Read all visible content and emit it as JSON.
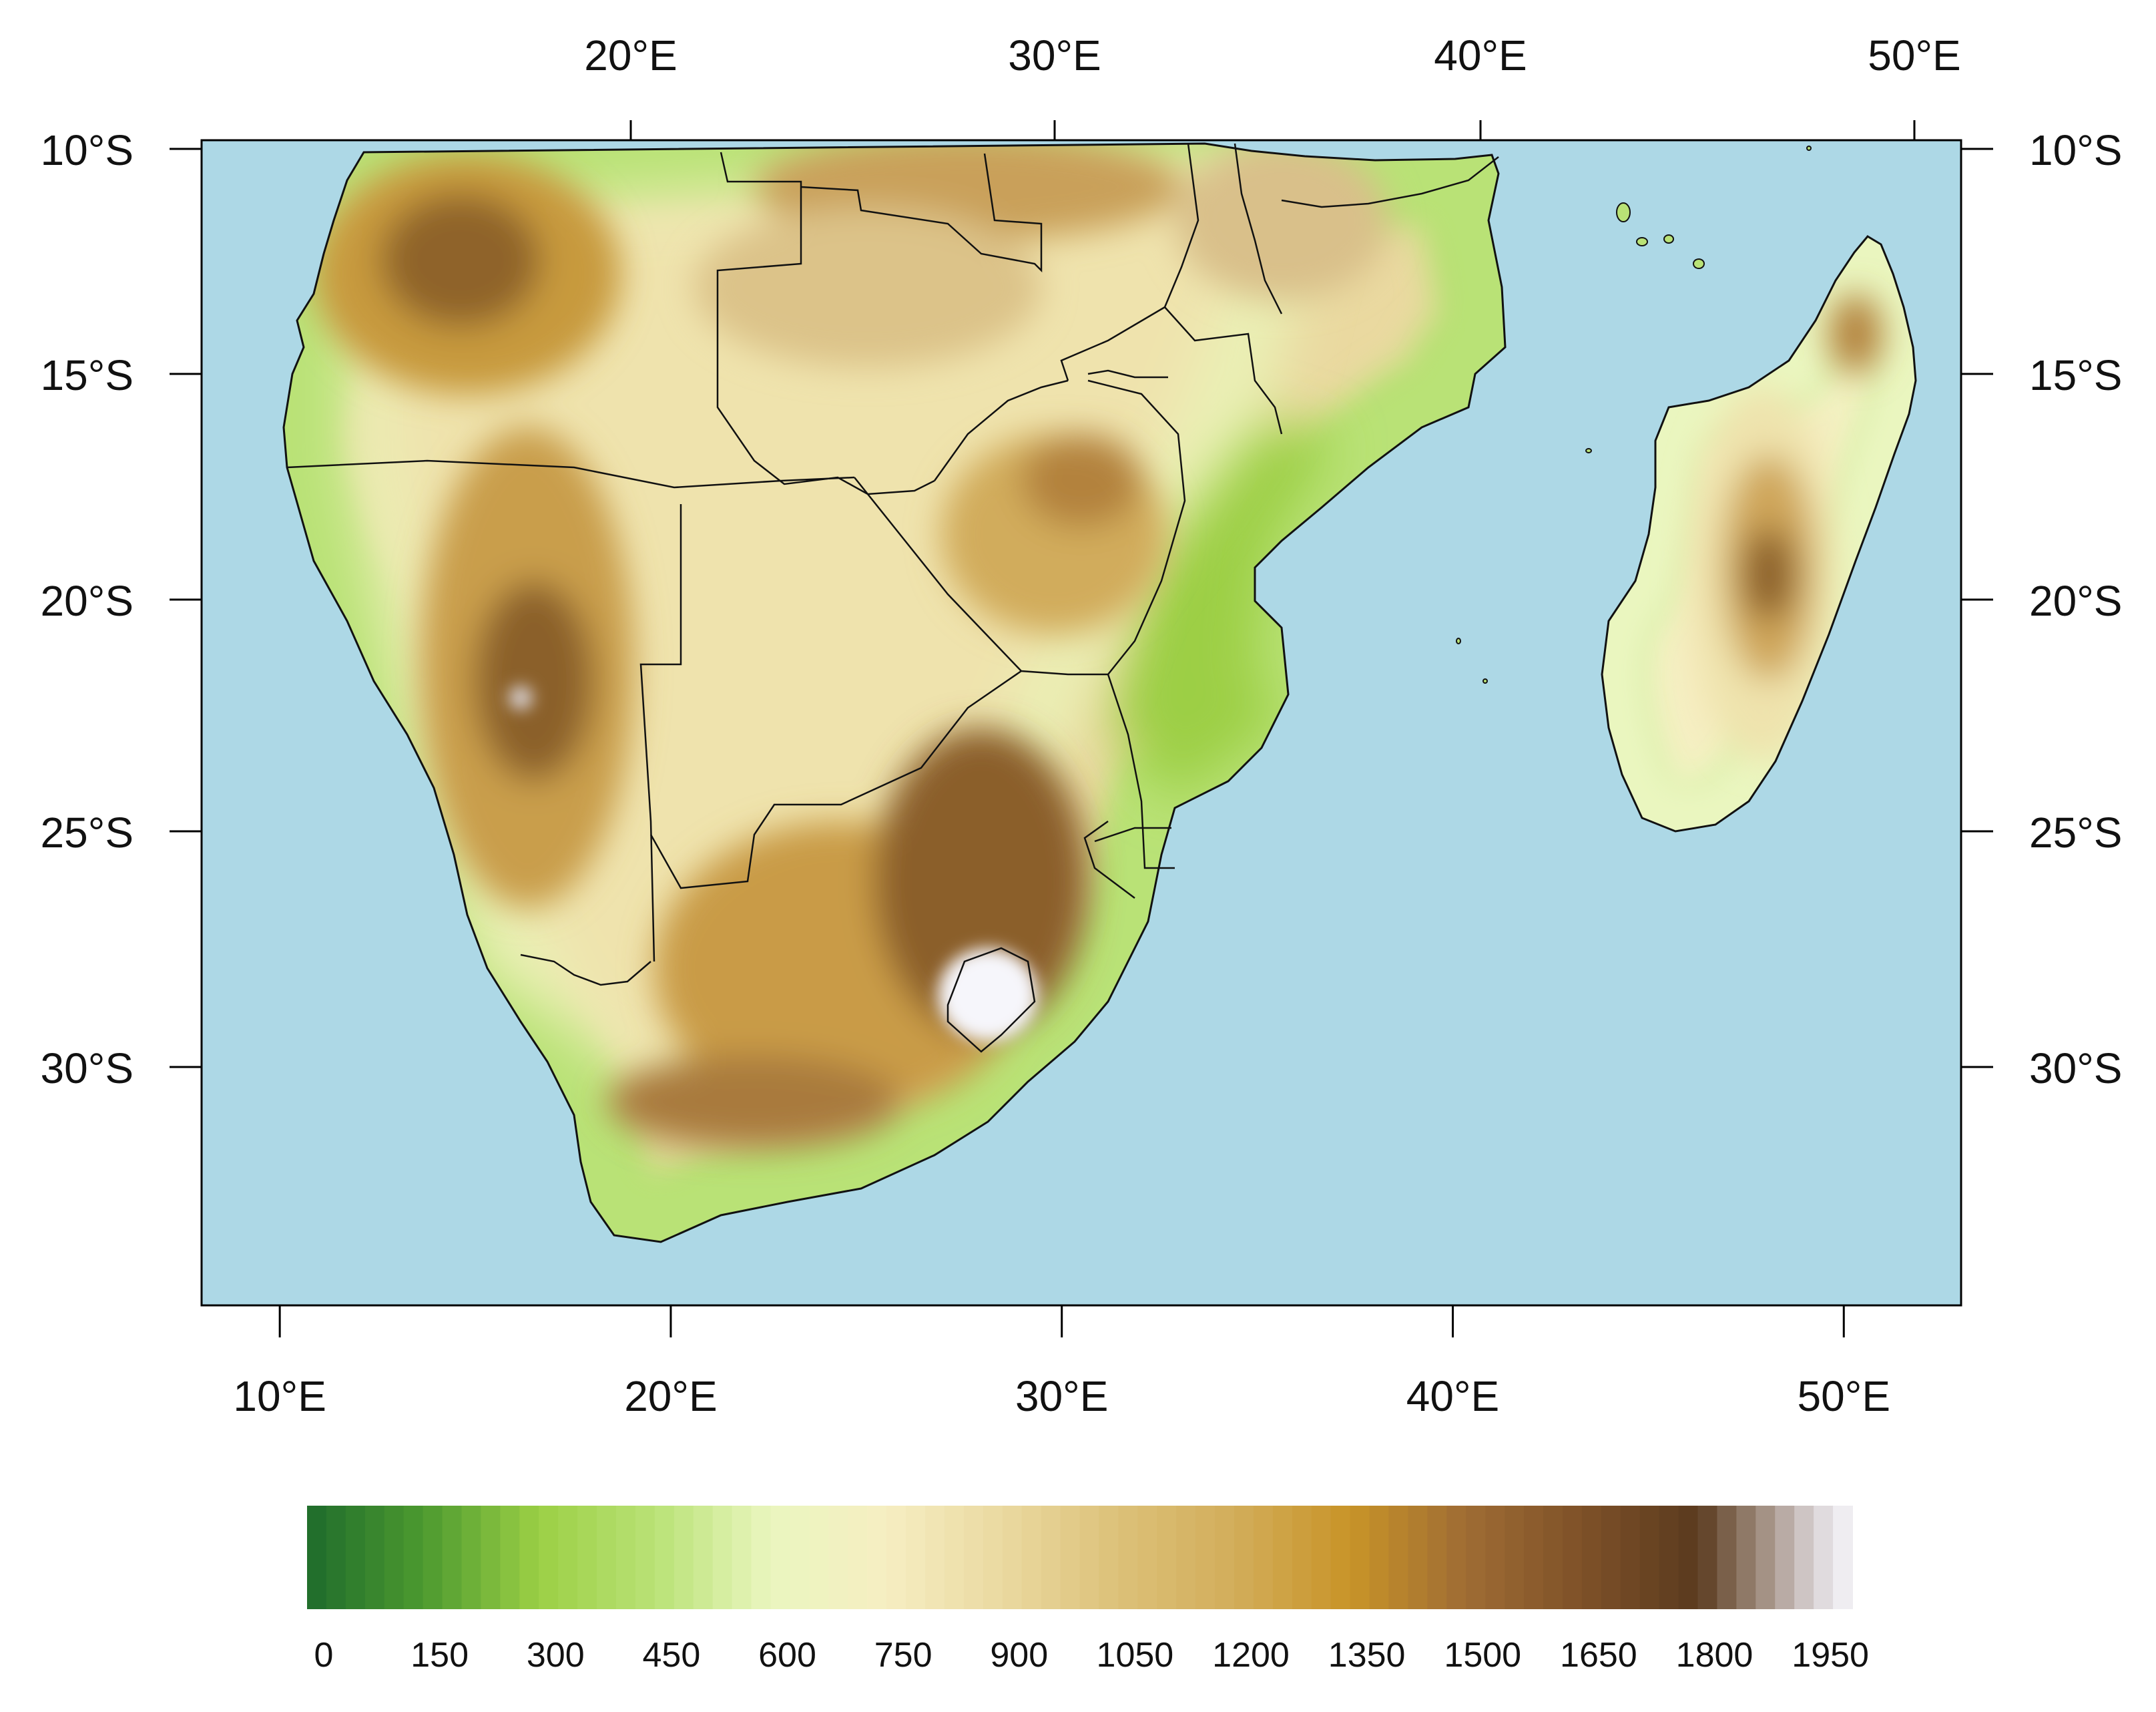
{
  "map": {
    "projection": "cylindrical-equidistant",
    "lon_range": [
      8,
      53
    ],
    "lat_range": [
      -35,
      -10
    ],
    "colors": {
      "ocean": "#add8e6",
      "frame": "#000000",
      "border": "#111111"
    },
    "top_lon_ticks": [
      {
        "lon": 20,
        "label": "20°E"
      },
      {
        "lon": 30,
        "label": "30°E"
      },
      {
        "lon": 40,
        "label": "40°E"
      },
      {
        "lon": 50,
        "label": "50°E"
      }
    ],
    "bottom_lon_ticks": [
      {
        "lon": 10,
        "label": "10°E"
      },
      {
        "lon": 20,
        "label": "20°E"
      },
      {
        "lon": 30,
        "label": "30°E"
      },
      {
        "lon": 40,
        "label": "40°E"
      },
      {
        "lon": 50,
        "label": "50°E"
      }
    ],
    "lat_ticks": [
      {
        "lat": -10,
        "label": "10°S"
      },
      {
        "lat": -15,
        "label": "15°S"
      },
      {
        "lat": -20,
        "label": "20°S"
      },
      {
        "lat": -25,
        "label": "25°S"
      },
      {
        "lat": -30,
        "label": "30°S"
      }
    ]
  },
  "colorbar": {
    "min": 0,
    "max": 2000,
    "labels": [
      "0",
      "150",
      "300",
      "450",
      "600",
      "750",
      "900",
      "1050",
      "1200",
      "1350",
      "1500",
      "1650",
      "1800",
      "1950"
    ],
    "label_values": [
      0,
      150,
      300,
      450,
      600,
      750,
      900,
      1050,
      1200,
      1350,
      1500,
      1650,
      1800,
      1950
    ],
    "stops": [
      {
        "v": 0,
        "c": "#1e6b2c"
      },
      {
        "v": 150,
        "c": "#4c9a2f"
      },
      {
        "v": 300,
        "c": "#9ccf45"
      },
      {
        "v": 450,
        "c": "#b9e276"
      },
      {
        "v": 600,
        "c": "#eaf6bf"
      },
      {
        "v": 750,
        "c": "#f6eec2"
      },
      {
        "v": 900,
        "c": "#ead9a0"
      },
      {
        "v": 1050,
        "c": "#dcc179"
      },
      {
        "v": 1200,
        "c": "#d2ad5a"
      },
      {
        "v": 1350,
        "c": "#c89428"
      },
      {
        "v": 1500,
        "c": "#9f6c34"
      },
      {
        "v": 1650,
        "c": "#7e5128"
      },
      {
        "v": 1800,
        "c": "#5a3a1e"
      },
      {
        "v": 1880,
        "c": "#9e8a7c"
      },
      {
        "v": 1950,
        "c": "#d8d2d4"
      },
      {
        "v": 2000,
        "c": "#f6f6fb"
      }
    ]
  }
}
